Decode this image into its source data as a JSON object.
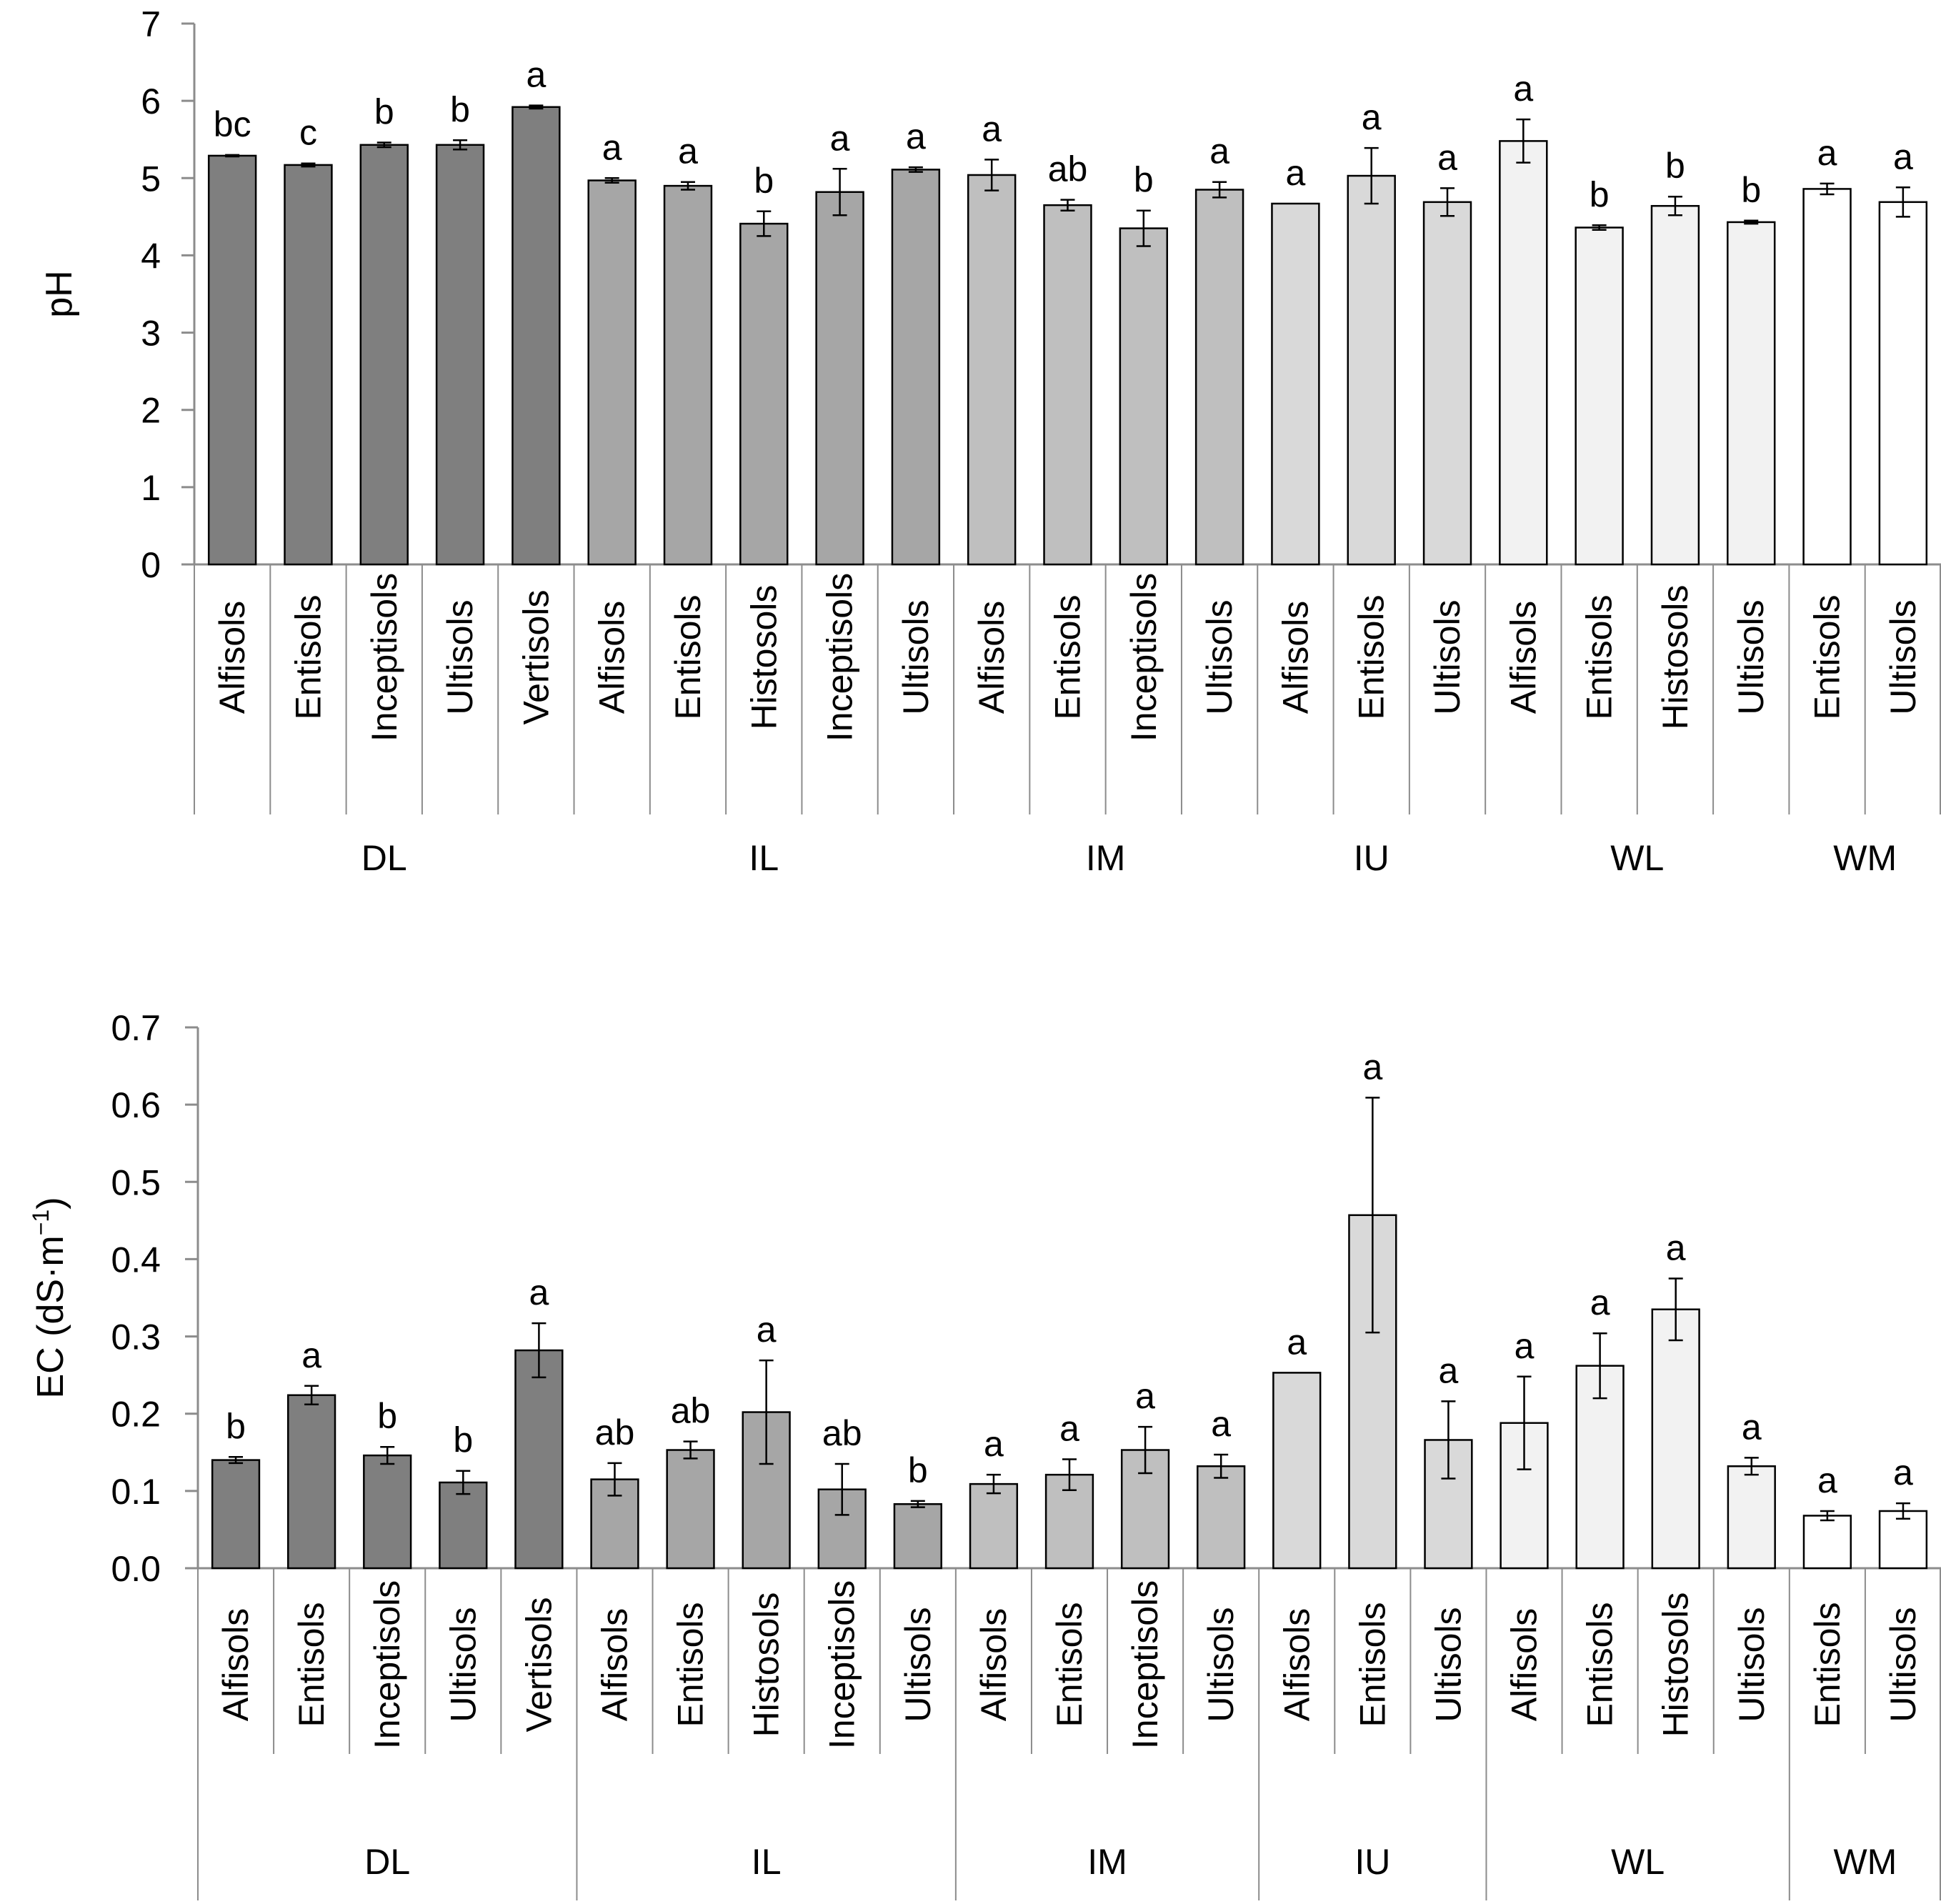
{
  "chart_data": [
    {
      "type": "bar",
      "title": "",
      "ylabel": "pH",
      "ylim": [
        0,
        7
      ],
      "yticks": [
        "0",
        "1",
        "2",
        "3",
        "4",
        "5",
        "6",
        "7"
      ],
      "grid": false,
      "legend": "none",
      "groups": [
        {
          "name": "DL",
          "color": "#7f7f7f",
          "items": [
            {
              "category": "Alfisols",
              "value": 5.29,
              "error": 0.01,
              "letter": "bc"
            },
            {
              "category": "Entisols",
              "value": 5.17,
              "error": 0.02,
              "letter": "c"
            },
            {
              "category": "Inceptisols",
              "value": 5.43,
              "error": 0.03,
              "letter": "b"
            },
            {
              "category": "Ultisols",
              "value": 5.43,
              "error": 0.06,
              "letter": "b"
            },
            {
              "category": "Vertisols",
              "value": 5.92,
              "error": 0.02,
              "letter": "a"
            }
          ]
        },
        {
          "name": "IL",
          "color": "#a6a6a6",
          "items": [
            {
              "category": "Alfisols",
              "value": 4.97,
              "error": 0.03,
              "letter": "a"
            },
            {
              "category": "Entisols",
              "value": 4.9,
              "error": 0.05,
              "letter": "a"
            },
            {
              "category": "Histosols",
              "value": 4.41,
              "error": 0.16,
              "letter": "b"
            },
            {
              "category": "Inceptisols",
              "value": 4.82,
              "error": 0.3,
              "letter": "a"
            },
            {
              "category": "Ultisols",
              "value": 5.11,
              "error": 0.03,
              "letter": "a"
            }
          ]
        },
        {
          "name": "IM",
          "color": "#bfbfbf",
          "items": [
            {
              "category": "Alfisols",
              "value": 5.04,
              "error": 0.2,
              "letter": "a"
            },
            {
              "category": "Entisols",
              "value": 4.65,
              "error": 0.07,
              "letter": "ab"
            },
            {
              "category": "Inceptisols",
              "value": 4.35,
              "error": 0.23,
              "letter": "b"
            },
            {
              "category": "Ultisols",
              "value": 4.85,
              "error": 0.1,
              "letter": "a"
            }
          ]
        },
        {
          "name": "IU",
          "color": "#d9d9d9",
          "items": [
            {
              "category": "Alfisols",
              "value": 4.67,
              "error": 0,
              "letter": "a"
            },
            {
              "category": "Entisols",
              "value": 5.03,
              "error": 0.36,
              "letter": "a"
            },
            {
              "category": "Ultisols",
              "value": 4.69,
              "error": 0.18,
              "letter": "a"
            }
          ]
        },
        {
          "name": "WL",
          "color": "#f2f2f2",
          "items": [
            {
              "category": "Alfisols",
              "value": 5.48,
              "error": 0.28,
              "letter": "a"
            },
            {
              "category": "Entisols",
              "value": 4.36,
              "error": 0.03,
              "letter": "b"
            },
            {
              "category": "Histosols",
              "value": 4.64,
              "error": 0.12,
              "letter": "b"
            },
            {
              "category": "Ultisols",
              "value": 4.43,
              "error": 0.02,
              "letter": "b"
            }
          ]
        },
        {
          "name": "WM",
          "color": "#ffffff",
          "items": [
            {
              "category": "Entisols",
              "value": 4.86,
              "error": 0.07,
              "letter": "a"
            },
            {
              "category": "Ultisols",
              "value": 4.69,
              "error": 0.19,
              "letter": "a"
            }
          ]
        }
      ]
    },
    {
      "type": "bar",
      "title": "",
      "ylabel": "EC (dS·m",
      "ylabel_sup": "−1",
      "ylabel_close": ")",
      "ylim": [
        0,
        0.7
      ],
      "yticks": [
        "0.0",
        "0.1",
        "0.2",
        "0.3",
        "0.4",
        "0.5",
        "0.6",
        "0.7"
      ],
      "grid": false,
      "legend": "none",
      "groups": [
        {
          "name": "DL",
          "color": "#7f7f7f",
          "items": [
            {
              "category": "Alfisols",
              "value": 0.14,
              "error": 0.004,
              "letter": "b"
            },
            {
              "category": "Entisols",
              "value": 0.224,
              "error": 0.012,
              "letter": "a"
            },
            {
              "category": "Inceptisols",
              "value": 0.146,
              "error": 0.011,
              "letter": "b"
            },
            {
              "category": "Ultisols",
              "value": 0.111,
              "error": 0.015,
              "letter": "b"
            },
            {
              "category": "Vertisols",
              "value": 0.282,
              "error": 0.035,
              "letter": "a"
            }
          ]
        },
        {
          "name": "IL",
          "color": "#a6a6a6",
          "items": [
            {
              "category": "Alfisols",
              "value": 0.115,
              "error": 0.021,
              "letter": "ab"
            },
            {
              "category": "Entisols",
              "value": 0.153,
              "error": 0.011,
              "letter": "ab"
            },
            {
              "category": "Histosols",
              "value": 0.202,
              "error": 0.067,
              "letter": "a"
            },
            {
              "category": "Inceptisols",
              "value": 0.102,
              "error": 0.033,
              "letter": "ab"
            },
            {
              "category": "Ultisols",
              "value": 0.083,
              "error": 0.004,
              "letter": "b"
            }
          ]
        },
        {
          "name": "IM",
          "color": "#bfbfbf",
          "items": [
            {
              "category": "Alfisols",
              "value": 0.109,
              "error": 0.012,
              "letter": "a"
            },
            {
              "category": "Entisols",
              "value": 0.121,
              "error": 0.02,
              "letter": "a"
            },
            {
              "category": "Inceptisols",
              "value": 0.153,
              "error": 0.03,
              "letter": "a"
            },
            {
              "category": "Ultisols",
              "value": 0.132,
              "error": 0.015,
              "letter": "a"
            }
          ]
        },
        {
          "name": "IU",
          "color": "#d9d9d9",
          "items": [
            {
              "category": "Alfisols",
              "value": 0.253,
              "error": 0,
              "letter": "a"
            },
            {
              "category": "Entisols",
              "value": 0.457,
              "error": 0.152,
              "letter": "a"
            },
            {
              "category": "Ultisols",
              "value": 0.166,
              "error": 0.05,
              "letter": "a"
            }
          ]
        },
        {
          "name": "WL",
          "color": "#f2f2f2",
          "items": [
            {
              "category": "Alfisols",
              "value": 0.188,
              "error": 0.06,
              "letter": "a"
            },
            {
              "category": "Entisols",
              "value": 0.262,
              "error": 0.042,
              "letter": "a"
            },
            {
              "category": "Histosols",
              "value": 0.335,
              "error": 0.04,
              "letter": "a"
            },
            {
              "category": "Ultisols",
              "value": 0.132,
              "error": 0.011,
              "letter": "a"
            }
          ]
        },
        {
          "name": "WM",
          "color": "#ffffff",
          "items": [
            {
              "category": "Entisols",
              "value": 0.068,
              "error": 0.006,
              "letter": "a"
            },
            {
              "category": "Ultisols",
              "value": 0.074,
              "error": 0.01,
              "letter": "a"
            }
          ]
        }
      ]
    }
  ]
}
